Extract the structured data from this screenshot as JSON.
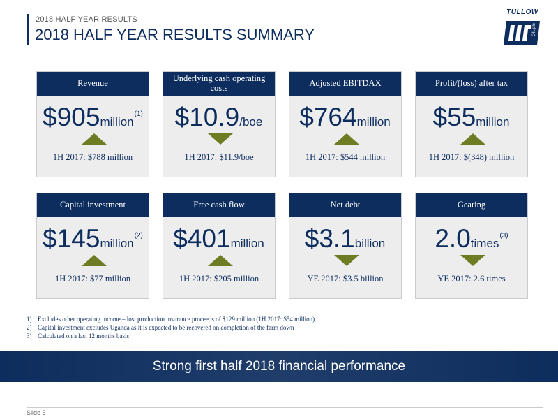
{
  "header": {
    "section_label": "2018 HALF YEAR RESULTS",
    "title": "2018 HALF YEAR RESULTS SUMMARY"
  },
  "logo": {
    "text": "TULLOW",
    "emblem_letters": "OIL plc",
    "brand_color": "#0d2d5e",
    "icon": "tullow-oil-logo"
  },
  "kpis": [
    {
      "title": "Revenue",
      "value": "$905",
      "unit": "million",
      "sup": "(1)",
      "trend": "up",
      "comparison": "1H 2017: $788 million"
    },
    {
      "title": "Underlying cash operating costs",
      "value": "$10.9",
      "unit": "/boe",
      "sup": "",
      "trend": "down",
      "comparison": "1H 2017: $11.9/boe"
    },
    {
      "title": "Adjusted EBITDAX",
      "value": "$764",
      "unit": "million",
      "sup": "",
      "trend": "up",
      "comparison": "1H 2017: $544 million"
    },
    {
      "title": "Profit/(loss) after tax",
      "value": "$55",
      "unit": "million",
      "sup": "",
      "trend": "up",
      "comparison": "1H 2017: $(348) million"
    },
    {
      "title": "Capital investment",
      "value": "$145",
      "unit": "million",
      "sup": "(2)",
      "trend": "up",
      "comparison": "1H 2017: $77 million"
    },
    {
      "title": "Free cash flow",
      "value": "$401",
      "unit": "million",
      "sup": "",
      "trend": "up",
      "comparison": "1H 2017: $205 million"
    },
    {
      "title": "Net debt",
      "value": "$3.1",
      "unit": "billion",
      "sup": "",
      "trend": "down",
      "comparison": "YE 2017: $3.5 billion"
    },
    {
      "title": "Gearing",
      "value": "2.0",
      "unit": "times",
      "sup": "(3)",
      "trend": "down",
      "comparison": "YE 2017: 2.6 times"
    }
  ],
  "footnotes": [
    {
      "num": "1)",
      "text": "Excludes other operating income – lost production insurance proceeds of $129 million (1H 2017: $54 million)"
    },
    {
      "num": "2)",
      "text": "Capital investment excludes Uganda as it is expected to be recovered on completion of the farm down"
    },
    {
      "num": "3)",
      "text": "Calculated on a last 12 months basis"
    }
  ],
  "banner": {
    "text": "Strong first half 2018 financial performance"
  },
  "footer": {
    "slide_label": "Slide 5"
  },
  "colors": {
    "navy": "#0d2d5e",
    "arrow_olive": "#6e7d23",
    "card_bg": "#ededee"
  }
}
